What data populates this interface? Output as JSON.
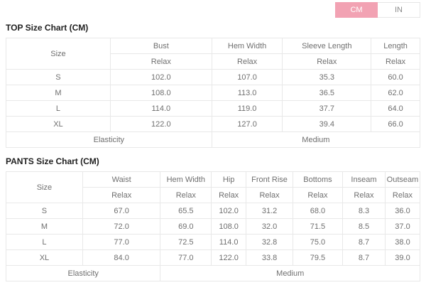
{
  "unit_toggle": {
    "cm_label": "CM",
    "in_label": "IN",
    "active": "CM",
    "active_bg": "#f2a2b3",
    "active_text": "#ffffff"
  },
  "top_chart": {
    "title": "TOP Size Chart (CM)",
    "size_header": "Size",
    "sub_header": "Relax",
    "columns": [
      "Bust",
      "Hem Width",
      "Sleeve Length",
      "Length"
    ],
    "rows": [
      {
        "size": "S",
        "values": [
          "102.0",
          "107.0",
          "35.3",
          "60.0"
        ]
      },
      {
        "size": "M",
        "values": [
          "108.0",
          "113.0",
          "36.5",
          "62.0"
        ]
      },
      {
        "size": "L",
        "values": [
          "114.0",
          "119.0",
          "37.7",
          "64.0"
        ]
      },
      {
        "size": "XL",
        "values": [
          "122.0",
          "127.0",
          "39.4",
          "66.0"
        ]
      }
    ],
    "elasticity_label": "Elasticity",
    "elasticity_value": "Medium"
  },
  "pants_chart": {
    "title": "PANTS Size Chart (CM)",
    "size_header": "Size",
    "sub_header": "Relax",
    "columns": [
      "Waist",
      "Hem Width",
      "Hip",
      "Front Rise",
      "Bottoms",
      "Inseam",
      "Outseam"
    ],
    "rows": [
      {
        "size": "S",
        "values": [
          "67.0",
          "65.5",
          "102.0",
          "31.2",
          "68.0",
          "8.3",
          "36.0"
        ]
      },
      {
        "size": "M",
        "values": [
          "72.0",
          "69.0",
          "108.0",
          "32.0",
          "71.5",
          "8.5",
          "37.0"
        ]
      },
      {
        "size": "L",
        "values": [
          "77.0",
          "72.5",
          "114.0",
          "32.8",
          "75.0",
          "8.7",
          "38.0"
        ]
      },
      {
        "size": "XL",
        "values": [
          "84.0",
          "77.0",
          "122.0",
          "33.8",
          "79.5",
          "8.7",
          "39.0"
        ]
      }
    ],
    "elasticity_label": "Elasticity",
    "elasticity_value": "Medium"
  }
}
